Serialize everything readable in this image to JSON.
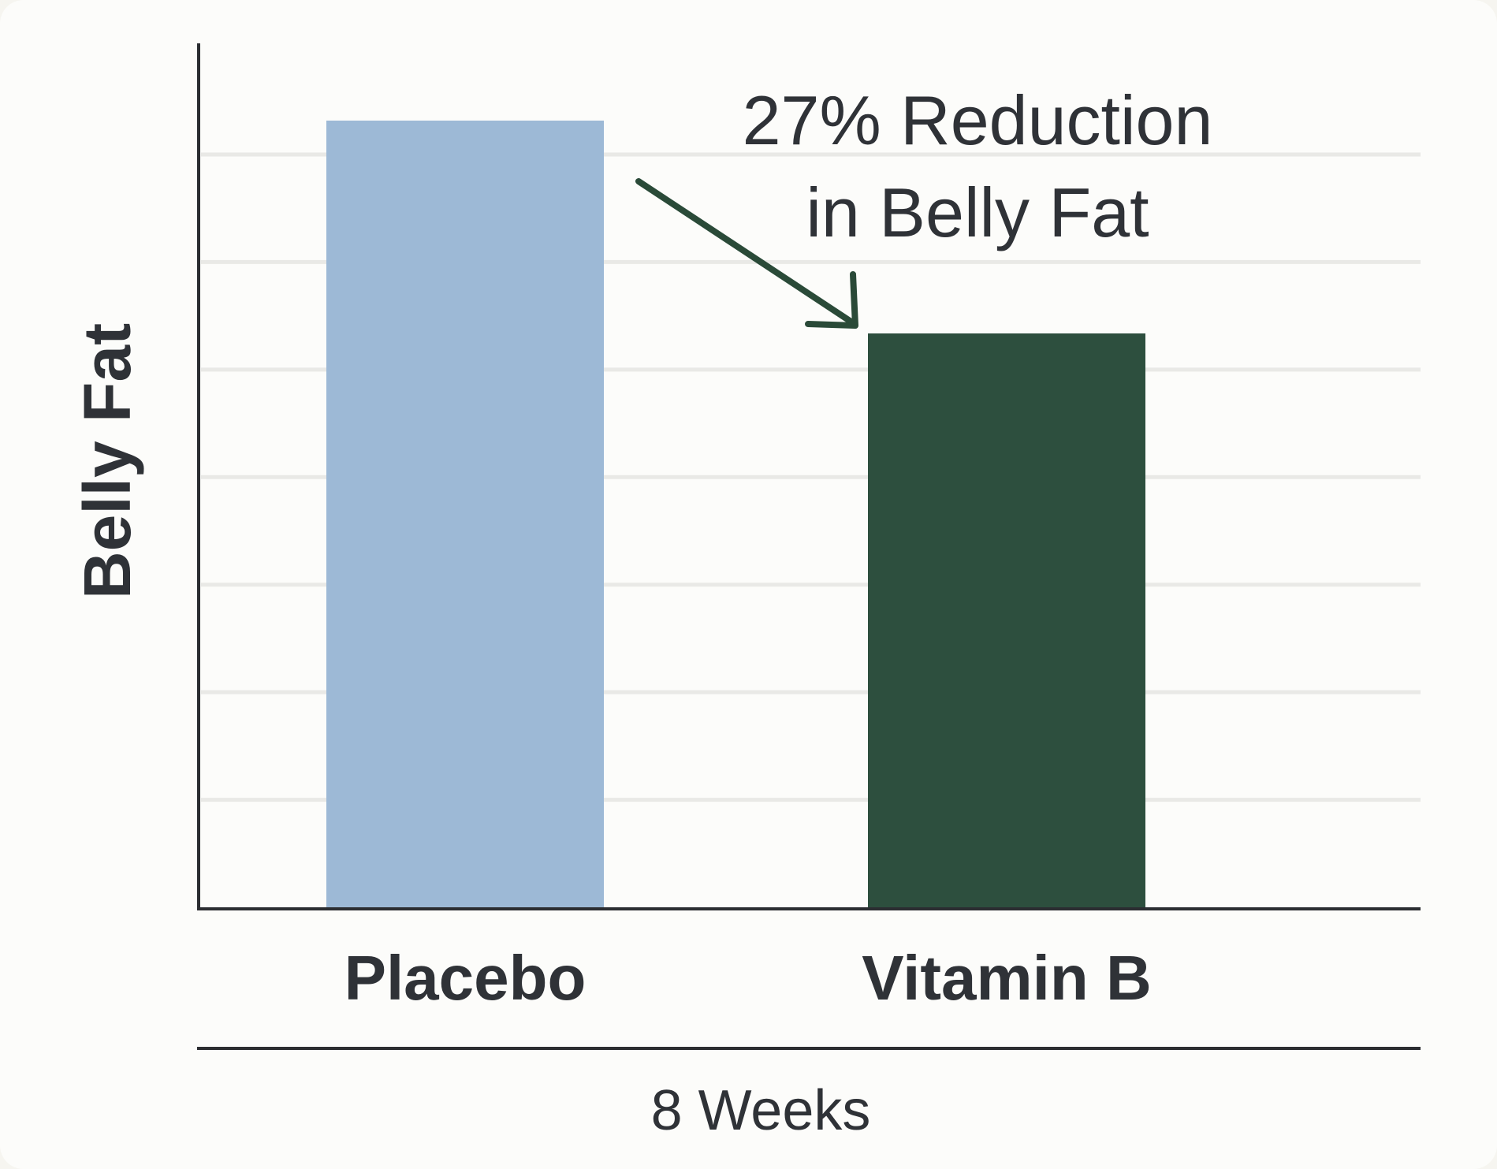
{
  "chart_data": {
    "type": "bar",
    "title": "",
    "xlabel": "8 Weeks",
    "ylabel": "Belly Fat",
    "ylim": [
      0,
      100
    ],
    "grid": true,
    "categories": [
      "Placebo",
      "Vitamin B"
    ],
    "values": [
      100,
      73
    ],
    "colors": [
      "#9db9d6",
      "#2d4f3e"
    ],
    "annotation": {
      "lines": [
        "27% Reduction",
        "in Belly Fat"
      ],
      "arrow_color": "#2a4a38"
    }
  }
}
